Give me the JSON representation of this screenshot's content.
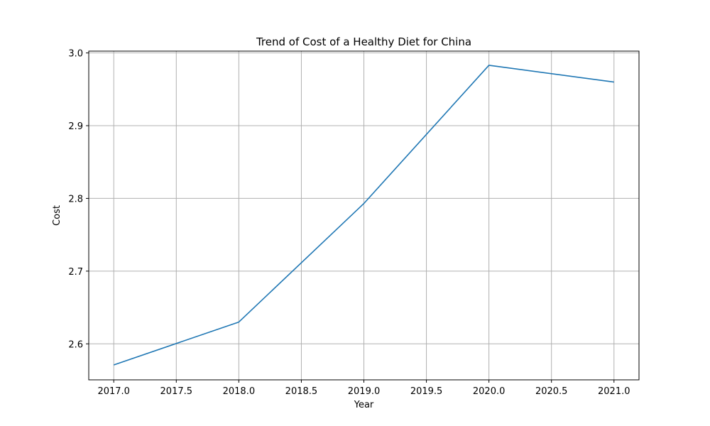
{
  "chart_data": {
    "type": "line",
    "title": "Trend of Cost of a Healthy Diet for China",
    "xlabel": "Year",
    "ylabel": "Cost",
    "x": [
      2017,
      2018,
      2019,
      2020,
      2021
    ],
    "series": [
      {
        "values": [
          2.571,
          2.63,
          2.793,
          2.983,
          2.96
        ],
        "color": "#1f77b4"
      }
    ],
    "xlim": [
      2016.8,
      2021.2
    ],
    "ylim": [
      2.5505,
      3.0025
    ],
    "xticks": [
      2017.0,
      2017.5,
      2018.0,
      2018.5,
      2019.0,
      2019.5,
      2020.0,
      2020.5,
      2021.0
    ],
    "xtick_labels": [
      "2017.0",
      "2017.5",
      "2018.0",
      "2018.5",
      "2019.0",
      "2019.5",
      "2020.0",
      "2020.5",
      "2021.0"
    ],
    "yticks": [
      2.6,
      2.7,
      2.8,
      2.9,
      3.0
    ],
    "ytick_labels": [
      "2.6",
      "2.7",
      "2.8",
      "2.9",
      "3.0"
    ],
    "grid": true,
    "grid_color": "#b0b0b0",
    "legend": "none"
  }
}
